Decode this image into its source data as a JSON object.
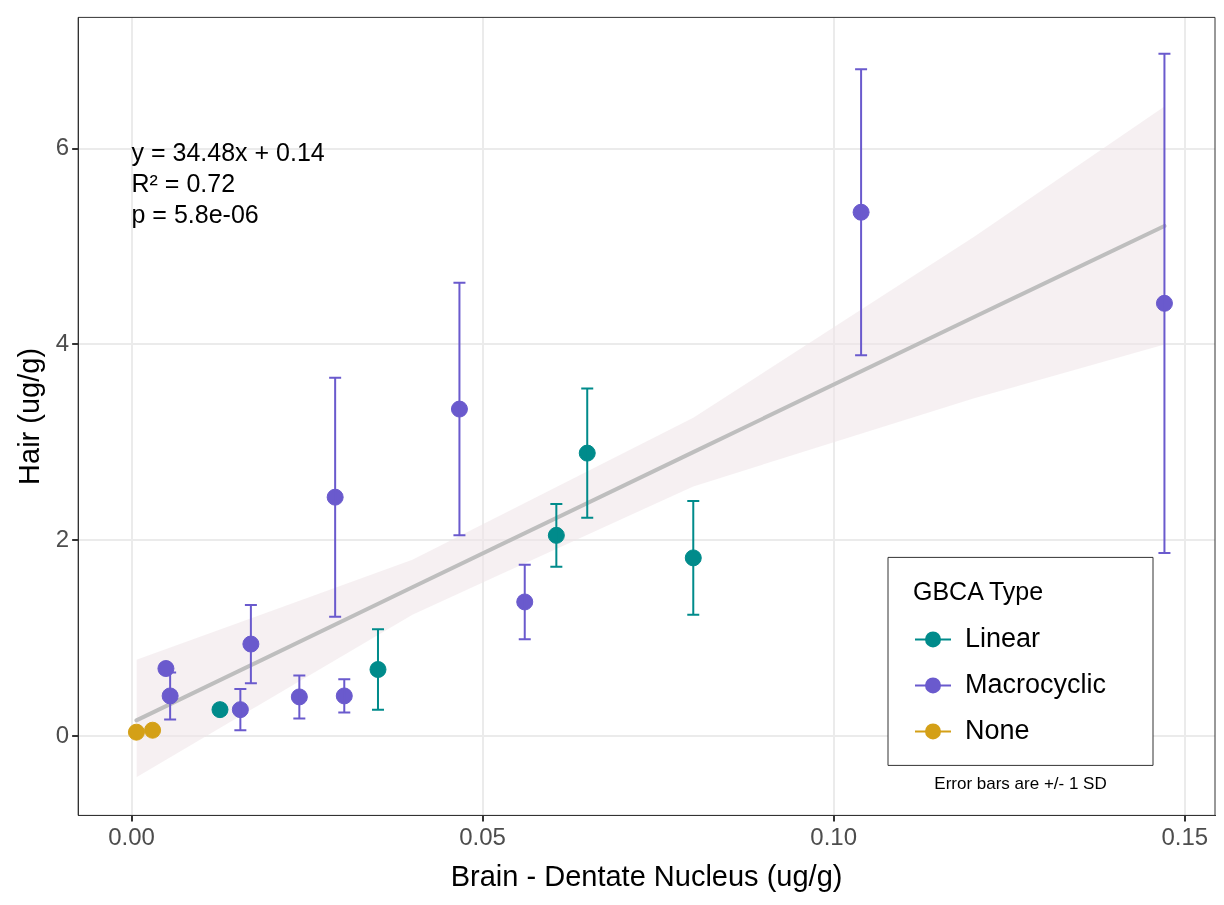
{
  "chart_data": {
    "type": "scatter",
    "xlabel": "Brain - Dentate Nucleus (ug/g)",
    "ylabel": "Hair (ug/g)",
    "legend_title": "GBCA Type",
    "annotations": [
      "y = 34.48x + 0.14",
      "R² = 0.72",
      "p = 5.8e-06",
      "Error bars are +/- 1 SD"
    ],
    "xlim": [
      -0.0076,
      0.1543
    ],
    "ylim": [
      -0.81,
      7.34
    ],
    "xticks": [
      {
        "value": 0,
        "label": "0.00"
      },
      {
        "value": 0.05,
        "label": "0.05"
      },
      {
        "value": 0.1,
        "label": "0.10"
      },
      {
        "value": 0.15,
        "label": "0.15"
      }
    ],
    "yticks": [
      0,
      2,
      4,
      6
    ],
    "grid": true,
    "legend": "bottom right",
    "marker": "circle",
    "series": [
      {
        "type": "line",
        "marker": "none",
        "color": "#bebebe",
        "x": [
          0.0007,
          0.04,
          0.08,
          0.12,
          0.1471
        ],
        "values": [
          0.16,
          1.52,
          2.9,
          4.28,
          5.21
        ],
        "lower": [
          -0.42,
          1.24,
          2.55,
          3.45,
          4.0
        ],
        "upper": [
          0.78,
          1.8,
          3.25,
          5.1,
          6.43
        ]
      },
      {
        "name": "Linear",
        "color": "#008b8b",
        "x": [
          0.0126,
          0.0351,
          0.0605,
          0.0649,
          0.08
        ],
        "values": [
          0.27,
          0.68,
          2.05,
          2.89,
          1.82
        ],
        "errors": [
          0.05,
          0.41,
          0.32,
          0.66,
          0.58
        ]
      },
      {
        "name": "Macrocyclic",
        "color": "#6a5acd",
        "x": [
          0.0049,
          0.0055,
          0.0155,
          0.017,
          0.0239,
          0.029,
          0.0303,
          0.0467,
          0.056,
          0.1039,
          0.1471
        ],
        "values": [
          0.69,
          0.41,
          0.27,
          0.94,
          0.4,
          2.44,
          0.41,
          3.34,
          1.37,
          5.35,
          4.42
        ],
        "errors": [
          null,
          0.24,
          0.21,
          0.4,
          0.22,
          1.22,
          0.17,
          1.29,
          0.38,
          1.46,
          2.55
        ]
      },
      {
        "name": "None",
        "color": "#d4a017",
        "x": [
          0.0007,
          0.003
        ],
        "values": [
          0.04,
          0.06
        ]
      }
    ]
  }
}
